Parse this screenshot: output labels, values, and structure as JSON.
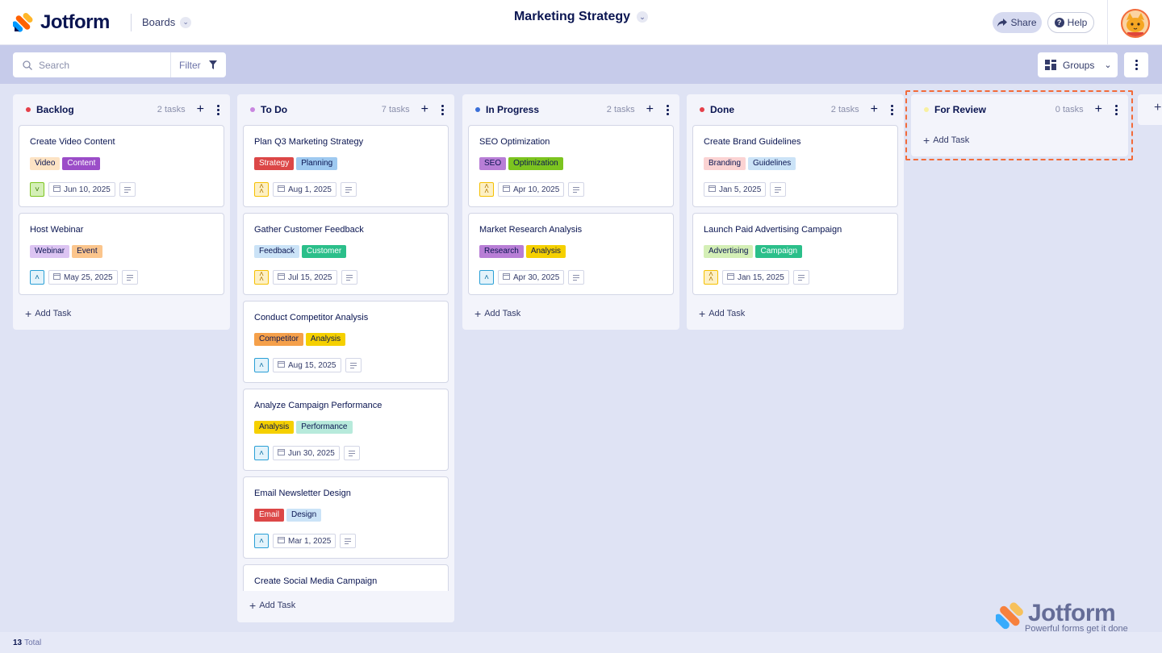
{
  "header": {
    "brand": "Jotform",
    "boards_label": "Boards",
    "board_title": "Marketing Strategy",
    "share_label": "Share",
    "help_label": "Help"
  },
  "toolbar": {
    "search_placeholder": "Search",
    "filter_label": "Filter",
    "groups_label": "Groups"
  },
  "colors": {
    "accent": "#0a1551",
    "review_outline": "#f26b3a",
    "background": "#dfe3f4"
  },
  "columns": [
    {
      "name": "Backlog",
      "count": "2 tasks",
      "dot": "#e5404a",
      "add_label": "Add Task",
      "cards": [
        {
          "title": "Create Video Content",
          "tags": [
            {
              "label": "Video",
              "bg": "#fde3c4",
              "fg": "#0a1551"
            },
            {
              "label": "Content",
              "bg": "#9b4dc8",
              "fg": "#ffffff"
            }
          ],
          "priority": "down",
          "date": "Jun 10, 2025"
        },
        {
          "title": "Host Webinar",
          "tags": [
            {
              "label": "Webinar",
              "bg": "#dcc4f2",
              "fg": "#0a1551"
            },
            {
              "label": "Event",
              "bg": "#fbc58c",
              "fg": "#0a1551"
            }
          ],
          "priority": "up",
          "date": "May 25, 2025"
        }
      ]
    },
    {
      "name": "To Do",
      "count": "7 tasks",
      "dot": "#c986e0",
      "add_label": "Add Task",
      "cards": [
        {
          "title": "Plan Q3 Marketing Strategy",
          "tags": [
            {
              "label": "Strategy",
              "bg": "#dc4747",
              "fg": "#ffffff"
            },
            {
              "label": "Planning",
              "bg": "#9ec9f0",
              "fg": "#0a1551"
            }
          ],
          "priority": "high",
          "date": "Aug 1, 2025"
        },
        {
          "title": "Gather Customer Feedback",
          "tags": [
            {
              "label": "Feedback",
              "bg": "#cbe3f7",
              "fg": "#0a1551"
            },
            {
              "label": "Customer",
              "bg": "#2bbf8a",
              "fg": "#ffffff"
            }
          ],
          "priority": "high",
          "date": "Jul 15, 2025"
        },
        {
          "title": "Conduct Competitor Analysis",
          "tags": [
            {
              "label": "Competitor",
              "bg": "#f5a04a",
              "fg": "#0a1551"
            },
            {
              "label": "Analysis",
              "bg": "#f5d000",
              "fg": "#0a1551"
            }
          ],
          "priority": "up",
          "date": "Aug 15, 2025"
        },
        {
          "title": "Analyze Campaign Performance",
          "tags": [
            {
              "label": "Analysis",
              "bg": "#f5d000",
              "fg": "#0a1551"
            },
            {
              "label": "Performance",
              "bg": "#b7eadb",
              "fg": "#0a1551"
            }
          ],
          "priority": "up",
          "date": "Jun 30, 2025"
        },
        {
          "title": "Email Newsletter Design",
          "tags": [
            {
              "label": "Email",
              "bg": "#dc4747",
              "fg": "#ffffff"
            },
            {
              "label": "Design",
              "bg": "#cbe3f7",
              "fg": "#0a1551"
            }
          ],
          "priority": "up",
          "date": "Mar 1, 2025"
        },
        {
          "title": "Create Social Media Campaign",
          "tags": [],
          "priority": "none",
          "date": ""
        }
      ]
    },
    {
      "name": "In Progress",
      "count": "2 tasks",
      "dot": "#3a6fd8",
      "add_label": "Add Task",
      "cards": [
        {
          "title": "SEO Optimization",
          "tags": [
            {
              "label": "SEO",
              "bg": "#b87ed6",
              "fg": "#0a1551"
            },
            {
              "label": "Optimization",
              "bg": "#7cc41f",
              "fg": "#0a1551"
            }
          ],
          "priority": "high",
          "date": "Apr 10, 2025"
        },
        {
          "title": "Market Research Analysis",
          "tags": [
            {
              "label": "Research",
              "bg": "#b87ed6",
              "fg": "#0a1551"
            },
            {
              "label": "Analysis",
              "bg": "#f5d000",
              "fg": "#0a1551"
            }
          ],
          "priority": "up",
          "date": "Apr 30, 2025"
        }
      ]
    },
    {
      "name": "Done",
      "count": "2 tasks",
      "dot": "#e5404a",
      "add_label": "Add Task",
      "cards": [
        {
          "title": "Create Brand Guidelines",
          "tags": [
            {
              "label": "Branding",
              "bg": "#fbd3d3",
              "fg": "#0a1551"
            },
            {
              "label": "Guidelines",
              "bg": "#cbe3f7",
              "fg": "#0a1551"
            }
          ],
          "priority": "none",
          "date": "Jan 5, 2025"
        },
        {
          "title": "Launch Paid Advertising Campaign",
          "tags": [
            {
              "label": "Advertising",
              "bg": "#d4efb6",
              "fg": "#0a1551"
            },
            {
              "label": "Campaign",
              "bg": "#2bbf8a",
              "fg": "#ffffff"
            }
          ],
          "priority": "high",
          "date": "Jan 15, 2025"
        }
      ]
    },
    {
      "name": "For Review",
      "count": "0 tasks",
      "dot": "#f8f0a0",
      "add_label": "Add Task",
      "cards": []
    }
  ],
  "footer": {
    "total_count": "13",
    "total_label": "Total"
  },
  "watermark": {
    "brand": "Jotform",
    "tagline": "Powerful forms get it done"
  }
}
